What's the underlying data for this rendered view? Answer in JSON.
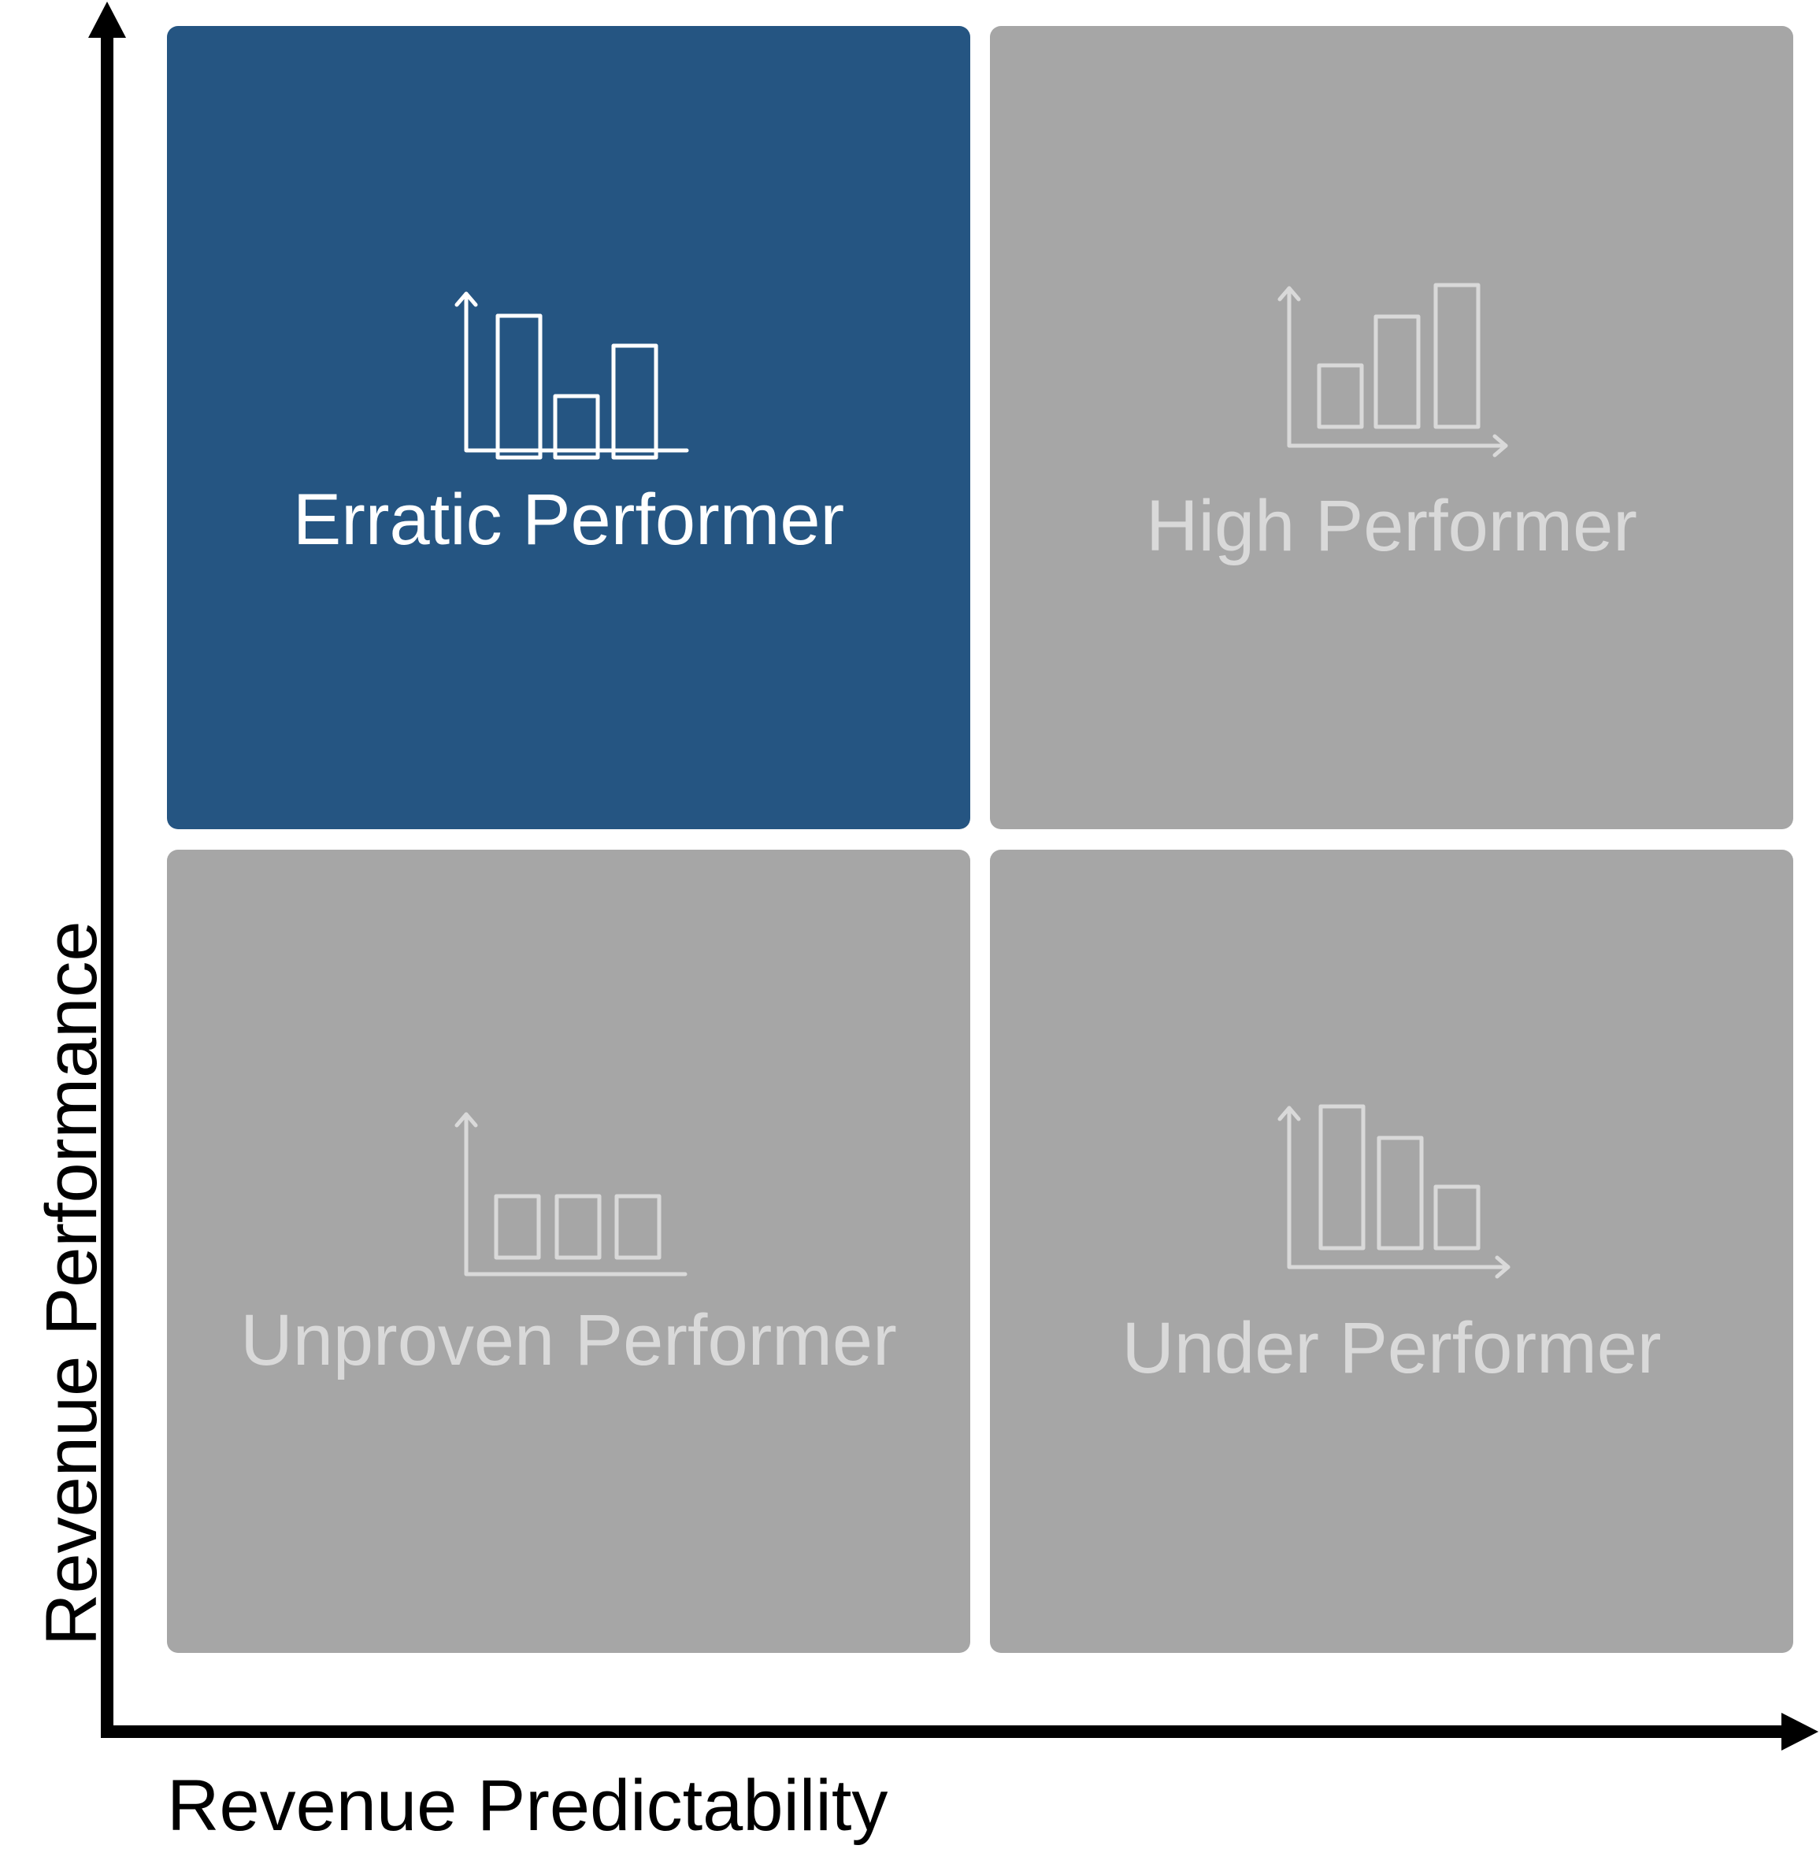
{
  "diagram": {
    "type": "2x2-matrix",
    "colors": {
      "highlight": "#255582",
      "muted": "#a6a6a6",
      "highlight_text": "#ffffff",
      "muted_text": "#d9d9d9",
      "axis": "#000000"
    },
    "quadrants": {
      "top_left": {
        "label": "Erratic Performer",
        "highlighted": true,
        "icon": "bar-chart-erratic-icon"
      },
      "top_right": {
        "label": "High Performer",
        "highlighted": false,
        "icon": "bar-chart-rising-icon"
      },
      "bottom_left": {
        "label": "Unproven Performer",
        "highlighted": false,
        "icon": "bar-chart-flat-icon"
      },
      "bottom_right": {
        "label": "Under Performer",
        "highlighted": false,
        "icon": "bar-chart-declining-icon"
      }
    },
    "axes": {
      "x_label": "Revenue Predictability",
      "y_label": "Revenue Performance"
    }
  }
}
